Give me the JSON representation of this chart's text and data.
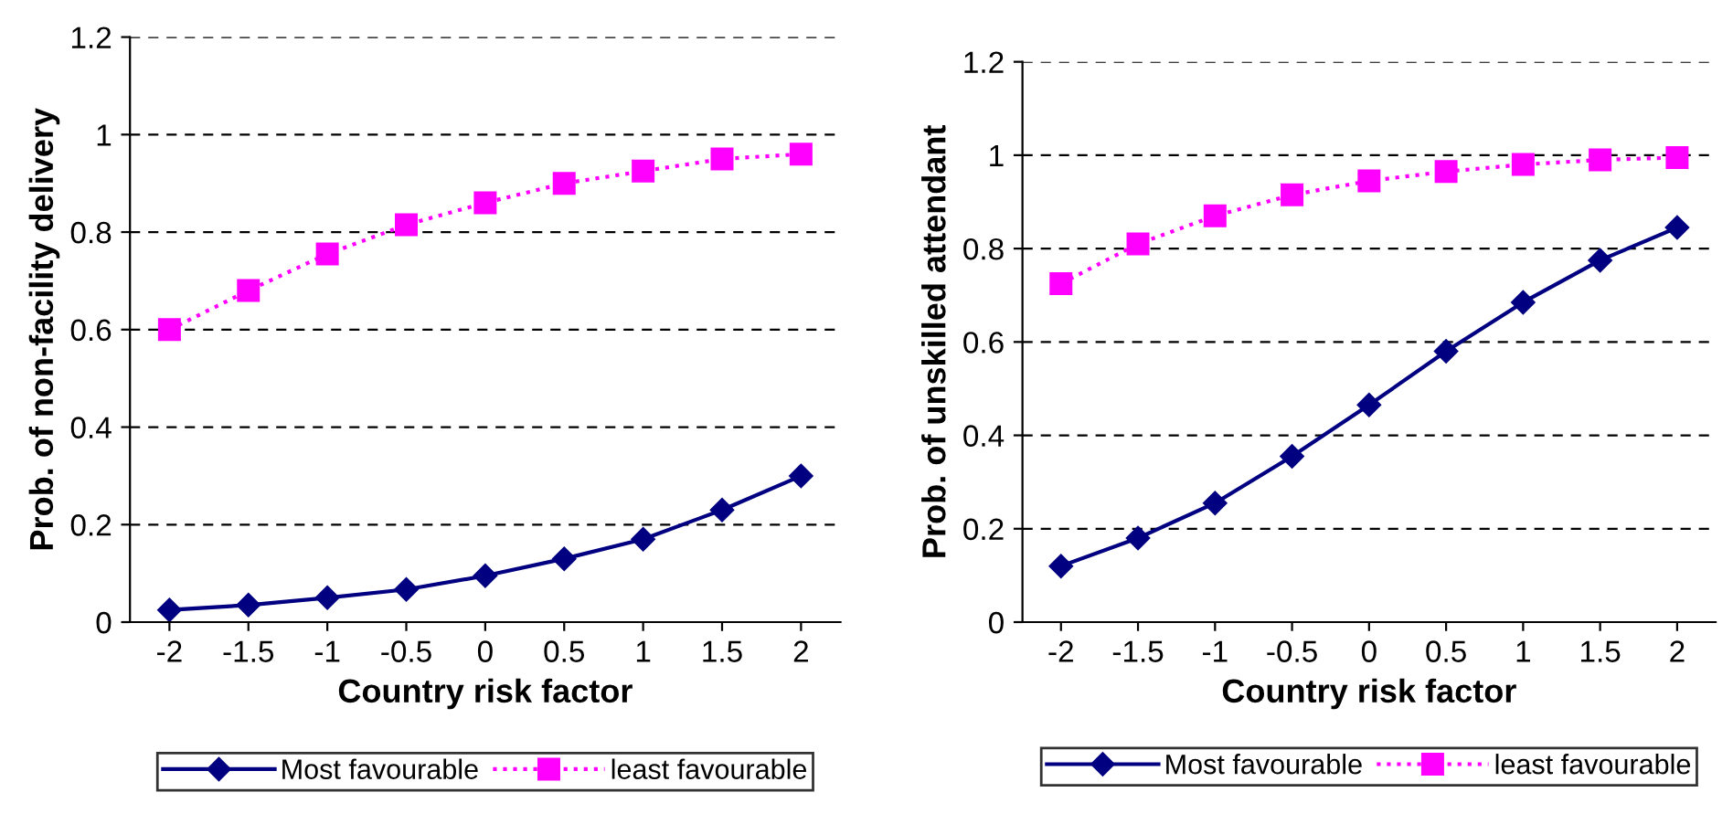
{
  "chart_data": [
    {
      "type": "line",
      "xlabel": "Country risk factor",
      "ylabel": "Prob. of non-facility delivery",
      "categories": [
        "-2",
        "-1.5",
        "-1",
        "-0.5",
        "0",
        "0.5",
        "1",
        "1.5",
        "2"
      ],
      "ylim": [
        0,
        1.2
      ],
      "yticks": [
        0,
        0.2,
        0.4,
        0.6,
        0.8,
        1,
        1.2
      ],
      "grid": "y",
      "legend": "bottom",
      "series": [
        {
          "name": "Most favourable",
          "color": "#000080",
          "marker": "diamond",
          "line_style": "solid",
          "values": [
            0.025,
            0.035,
            0.05,
            0.067,
            0.095,
            0.13,
            0.17,
            0.23,
            0.3
          ]
        },
        {
          "name": "least favourable",
          "color": "#ff00ff",
          "marker": "square",
          "line_style": "dotted",
          "values": [
            0.6,
            0.68,
            0.755,
            0.815,
            0.86,
            0.9,
            0.925,
            0.95,
            0.96
          ]
        }
      ]
    },
    {
      "type": "line",
      "xlabel": "Country risk factor",
      "ylabel": "Prob. of unskilled attendant",
      "categories": [
        "-2",
        "-1.5",
        "-1",
        "-0.5",
        "0",
        "0.5",
        "1",
        "1.5",
        "2"
      ],
      "ylim": [
        0,
        1.2
      ],
      "yticks": [
        0,
        0.2,
        0.4,
        0.6,
        0.8,
        1,
        1.2
      ],
      "grid": "y",
      "legend": "bottom",
      "series": [
        {
          "name": "Most favourable",
          "color": "#000080",
          "marker": "diamond",
          "line_style": "solid",
          "values": [
            0.12,
            0.18,
            0.255,
            0.355,
            0.465,
            0.58,
            0.685,
            0.775,
            0.845
          ]
        },
        {
          "name": "least favourable",
          "color": "#ff00ff",
          "marker": "square",
          "line_style": "dotted",
          "values": [
            0.725,
            0.81,
            0.87,
            0.915,
            0.945,
            0.965,
            0.98,
            0.99,
            0.995
          ]
        }
      ]
    }
  ]
}
